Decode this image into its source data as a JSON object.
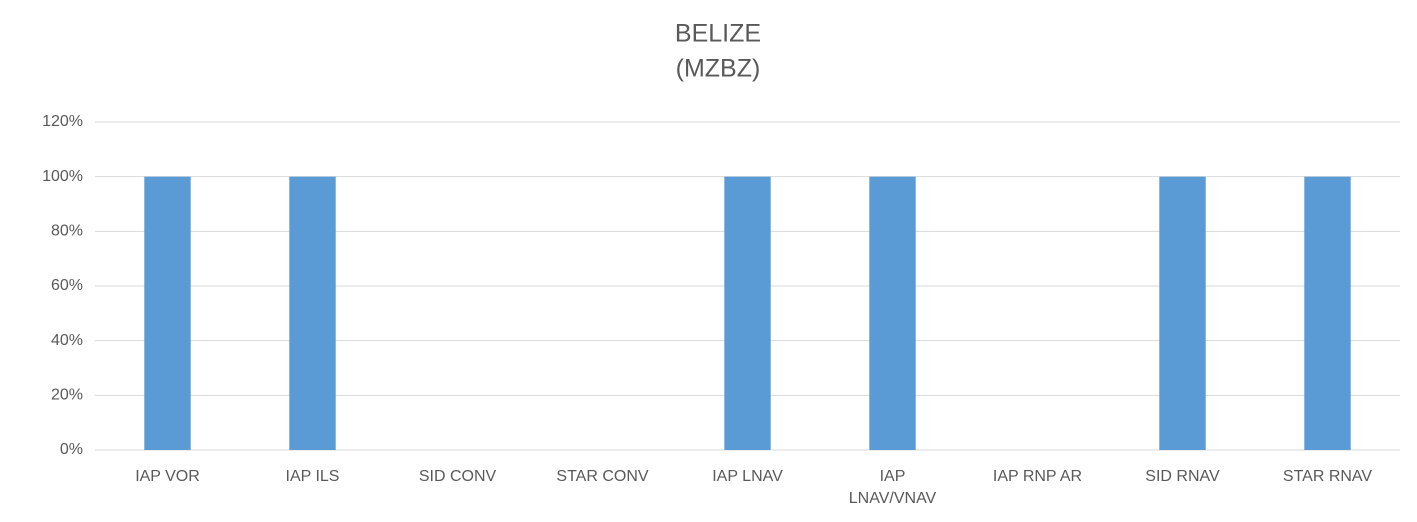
{
  "chart_data": {
    "type": "bar",
    "title": [
      "BELIZE",
      "(MZBZ)"
    ],
    "categories": [
      "IAP VOR",
      "IAP ILS",
      "SID CONV",
      "STAR CONV",
      "IAP LNAV",
      "IAP LNAV/VNAV",
      "IAP RNP AR",
      "SID RNAV",
      "STAR RNAV"
    ],
    "values": [
      100,
      100,
      0,
      0,
      100,
      100,
      0,
      100,
      100
    ],
    "color": "#5b9bd5",
    "ylim": [
      0,
      120
    ],
    "yticks": [
      {
        "value": 0,
        "label": "0%"
      },
      {
        "value": 20,
        "label": "20%"
      },
      {
        "value": 40,
        "label": "40%"
      },
      {
        "value": 60,
        "label": "60%"
      },
      {
        "value": 80,
        "label": "80%"
      },
      {
        "value": 100,
        "label": "100%"
      },
      {
        "value": 120,
        "label": "120%"
      }
    ],
    "grid": true
  }
}
